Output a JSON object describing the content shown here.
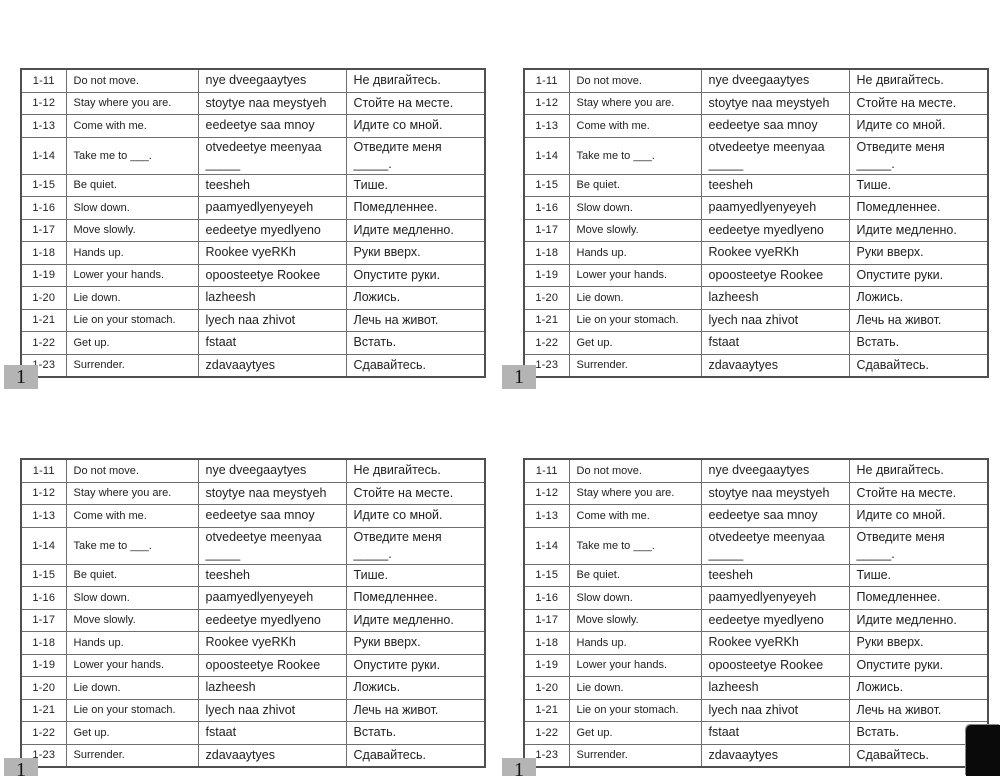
{
  "page_number": "1",
  "colors": {
    "page_bg": "#ffffff",
    "table_border": "#6e6e6e",
    "table_outer_border": "#4f4f4f",
    "text": "#212121",
    "pagenum_bg": "#b4b4b4",
    "corner_overlay": "#0a0a0a"
  },
  "table": {
    "rows": [
      {
        "id": "1-11",
        "en": "Do not move.",
        "tr": "nye dveegaaytyes",
        "ru": "Не двигайтесь."
      },
      {
        "id": "1-12",
        "en": "Stay where you are.",
        "tr": "stoytye naa meystyeh",
        "ru": "Стойте на месте."
      },
      {
        "id": "1-13",
        "en": "Come with me.",
        "tr": "eedeetye saa mnoy",
        "ru": "Идите со мной."
      },
      {
        "id": "1-14",
        "en": "Take me to ___.",
        "tr": "otvedeetye meenyaa",
        "tr_line2": "_____",
        "ru": "Отведите меня",
        "ru_line2": "_____."
      },
      {
        "id": "1-15",
        "en": "Be quiet.",
        "tr": "teesheh",
        "ru": "Тише."
      },
      {
        "id": "1-16",
        "en": "Slow down.",
        "tr": "paamyedlyenyeyeh",
        "ru": "Помедленнее."
      },
      {
        "id": "1-17",
        "en": "Move slowly.",
        "tr": "eedeetye myedlyeno",
        "ru": "Идите медленно."
      },
      {
        "id": "1-18",
        "en": "Hands up.",
        "tr": "Rookee vyeRKh",
        "ru": "Руки вверх."
      },
      {
        "id": "1-19",
        "en": "Lower your hands.",
        "tr": "opoosteetye Rookee",
        "ru": "Опустите руки."
      },
      {
        "id": "1-20",
        "en": "Lie down.",
        "tr": "lazheesh",
        "ru": "Ложись."
      },
      {
        "id": "1-21",
        "en": "Lie on your stomach.",
        "tr": "lyech naa zhivot",
        "ru": "Лечь на живот."
      },
      {
        "id": "1-22",
        "en": "Get up.",
        "tr": "fstaat",
        "ru": "Встать."
      },
      {
        "id": "1-23",
        "en": "Surrender.",
        "tr": "zdavaaytyes",
        "ru": "Сдавайтесь."
      }
    ]
  }
}
